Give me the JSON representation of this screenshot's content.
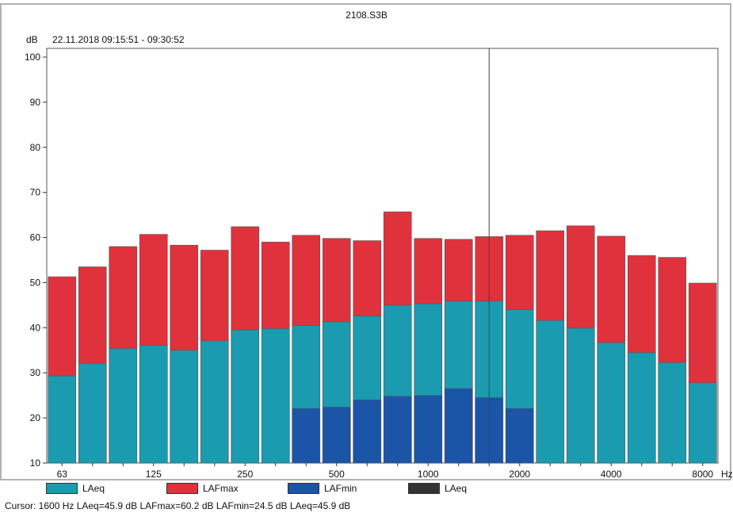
{
  "title": "2108.S3B",
  "y_unit": "dB",
  "time_range": "22.11.2018 09:15:51 - 09:30:52",
  "x_unit": "Hz",
  "cursor_text": "Cursor: 1600 Hz  LAeq=45.9 dB  LAFmax=60.2 dB  LAFmin=24.5 dB  LAeq=45.9 dB",
  "legend": [
    {
      "label": "LAeq",
      "color": "#1a9bb0"
    },
    {
      "label": "LAFmax",
      "color": "#e0323c"
    },
    {
      "label": "LAFmin",
      "color": "#1a55a8"
    },
    {
      "label": "LAeq",
      "color": "#333333"
    }
  ],
  "chart_data": {
    "type": "bar",
    "title": "2108.S3B",
    "ylabel": "dB",
    "xlabel": "Hz",
    "ylim": [
      10,
      100
    ],
    "yticks": [
      10,
      20,
      30,
      40,
      50,
      60,
      70,
      80,
      90,
      100
    ],
    "grid": false,
    "legend_position": "bottom",
    "categories": [
      "63",
      "80",
      "100",
      "125",
      "160",
      "200",
      "250",
      "315",
      "400",
      "500",
      "630",
      "800",
      "1000",
      "1250",
      "1600",
      "2000",
      "2500",
      "3150",
      "4000",
      "5000",
      "6300",
      "8000"
    ],
    "x_tick_labels": [
      "63",
      "125",
      "250",
      "500",
      "1000",
      "2000",
      "4000",
      "8000"
    ],
    "cursor_category": "1600",
    "series": [
      {
        "name": "LAFmax",
        "color": "#e0323c",
        "values": [
          51.3,
          53.5,
          58.0,
          60.7,
          58.3,
          57.2,
          62.4,
          59.0,
          60.5,
          59.8,
          59.3,
          65.7,
          59.8,
          59.6,
          60.2,
          60.5,
          61.5,
          62.6,
          60.3,
          56.0,
          55.6,
          49.9
        ]
      },
      {
        "name": "LAeq",
        "color": "#1a9bb0",
        "values": [
          29.3,
          32.1,
          35.4,
          36.1,
          35.0,
          37.1,
          39.5,
          39.8,
          40.5,
          41.3,
          42.6,
          45.0,
          45.3,
          45.9,
          45.9,
          44.0,
          41.6,
          39.9,
          36.7,
          34.5,
          32.3,
          27.8
        ]
      },
      {
        "name": "LAFmin",
        "color": "#1a55a8",
        "values": [
          null,
          null,
          null,
          null,
          null,
          null,
          null,
          null,
          22.1,
          22.4,
          24.0,
          24.8,
          25.0,
          26.5,
          24.5,
          22.1,
          null,
          null,
          null,
          null,
          null,
          null
        ]
      }
    ]
  }
}
